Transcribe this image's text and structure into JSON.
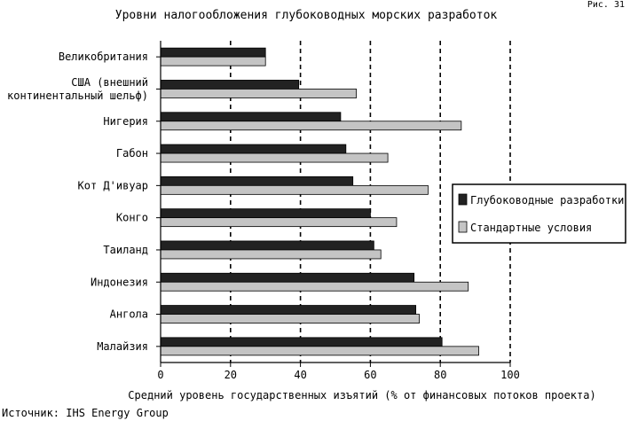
{
  "figure_label": "Рис. 31",
  "source": "Источник: IHS Energy Group",
  "chart_data": {
    "type": "bar",
    "orientation": "horizontal",
    "title": "Уровни налогообложения глубоководных морских разработок",
    "xlabel": "Средний уровень государственных изъятий (% от финансовых потоков проекта)",
    "ylabel": "",
    "xlim": [
      0,
      100
    ],
    "xticks": [
      0,
      20,
      40,
      60,
      80,
      100
    ],
    "grid": "vertical dashed",
    "legend_position": "right",
    "categories": [
      [
        "Великобритания"
      ],
      [
        "США (внешний",
        "континентальный шельф)"
      ],
      [
        "Нигерия"
      ],
      [
        "Габон"
      ],
      [
        "Кот Д'ивуар"
      ],
      [
        "Конго"
      ],
      [
        "Таиланд"
      ],
      [
        "Индонезия"
      ],
      [
        "Ангола"
      ],
      [
        "Малайзия"
      ]
    ],
    "series": [
      {
        "name": "Глубоководные разработки",
        "color": "#222222",
        "values": [
          30,
          39.5,
          51.5,
          53,
          55,
          60,
          61,
          72.5,
          73,
          80.5
        ]
      },
      {
        "name": "Стандартные условия",
        "color": "#c4c4c4",
        "values": [
          30,
          56,
          86,
          65,
          76.5,
          67.5,
          63,
          88,
          74,
          91
        ]
      }
    ]
  }
}
